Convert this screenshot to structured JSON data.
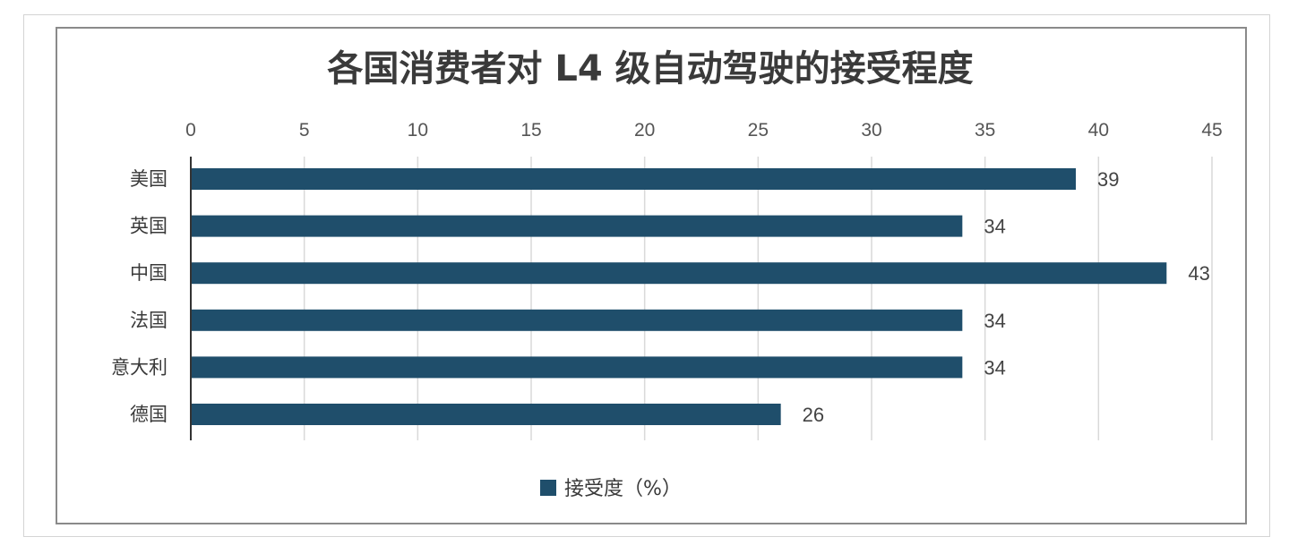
{
  "chart_data": {
    "type": "bar",
    "orientation": "horizontal",
    "title": "各国消费者对 L4 级自动驾驶的接受程度",
    "categories": [
      "美国",
      "英国",
      "中国",
      "法国",
      "意大利",
      "德国"
    ],
    "series": [
      {
        "name": "接受度（%）",
        "values": [
          39,
          34,
          43,
          34,
          34,
          26
        ],
        "color": "#1f4e6b"
      }
    ],
    "xlim": [
      0,
      45
    ],
    "x_ticks": [
      0,
      5,
      10,
      15,
      20,
      25,
      30,
      35,
      40,
      45
    ],
    "x_axis_position": "top",
    "grid": true,
    "legend": "bottom",
    "data_labels": true
  },
  "colors": {
    "bar": "#1f4e6b",
    "grid": "#d9d9d9",
    "axis": "#333333"
  }
}
